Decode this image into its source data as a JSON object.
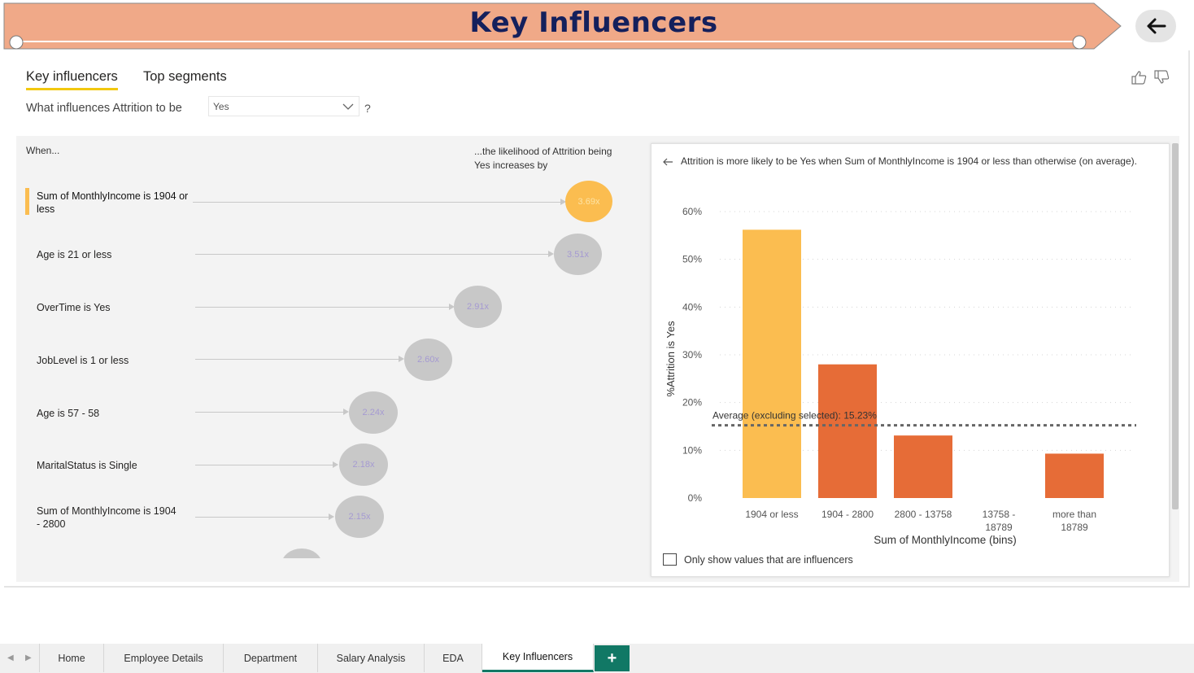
{
  "banner": {
    "title": "Key Influencers",
    "fill_color": "#f0a988",
    "title_color": "#14205c"
  },
  "visual_tabs": {
    "key_influencers": "Key influencers",
    "top_segments": "Top segments"
  },
  "question": {
    "prefix": "What influences Attrition to be",
    "selected_value": "Yes",
    "suffix": "?"
  },
  "left": {
    "when_label": "When...",
    "likelihood_label": "...the likelihood of Attrition being Yes increases by",
    "influencers": [
      {
        "label": "Sum of MonthlyIncome is 1904 or less",
        "factor": "3.69x",
        "selected": true
      },
      {
        "label": "Age is 21 or less",
        "factor": "3.51x",
        "selected": false
      },
      {
        "label": "OverTime is Yes",
        "factor": "2.91x",
        "selected": false
      },
      {
        "label": "JobLevel is 1 or less",
        "factor": "2.60x",
        "selected": false
      },
      {
        "label": "Age is 57 - 58",
        "factor": "2.24x",
        "selected": false
      },
      {
        "label": "MaritalStatus is Single",
        "factor": "2.18x",
        "selected": false
      },
      {
        "label": "Sum of MonthlyIncome is 1904 - 2800",
        "factor": "2.15x",
        "selected": false
      }
    ]
  },
  "detail": {
    "description": "Attrition is more likely to be Yes when Sum of MonthlyIncome is 1904 or less than otherwise (on average).",
    "only_influencers_label": "Only show values that are influencers"
  },
  "chart_data": {
    "type": "bar",
    "categories": [
      "1904 or less",
      "1904 - 2800",
      "2800 - 13758",
      "13758 - 18789",
      "more than 18789"
    ],
    "values": [
      56.2,
      28.0,
      13.1,
      0,
      9.3
    ],
    "highlight_index": 0,
    "xlabel": "Sum of MonthlyIncome (bins)",
    "ylabel": "%Attrition is Yes",
    "ylim": [
      0,
      60
    ],
    "yticks": [
      "0%",
      "10%",
      "20%",
      "30%",
      "40%",
      "50%",
      "60%"
    ],
    "average_value": 15.23,
    "average_label": "Average (excluding selected): 15.23%",
    "colors": {
      "highlight": "#fbbd50",
      "bar": "#e66c37",
      "average_line": "#666666"
    },
    "grid": true
  },
  "page_tabs": {
    "items": [
      "Home",
      "Employee Details",
      "Department",
      "Salary Analysis",
      "EDA",
      "Key Influencers"
    ],
    "active": "Key Influencers",
    "add_label": "+"
  }
}
